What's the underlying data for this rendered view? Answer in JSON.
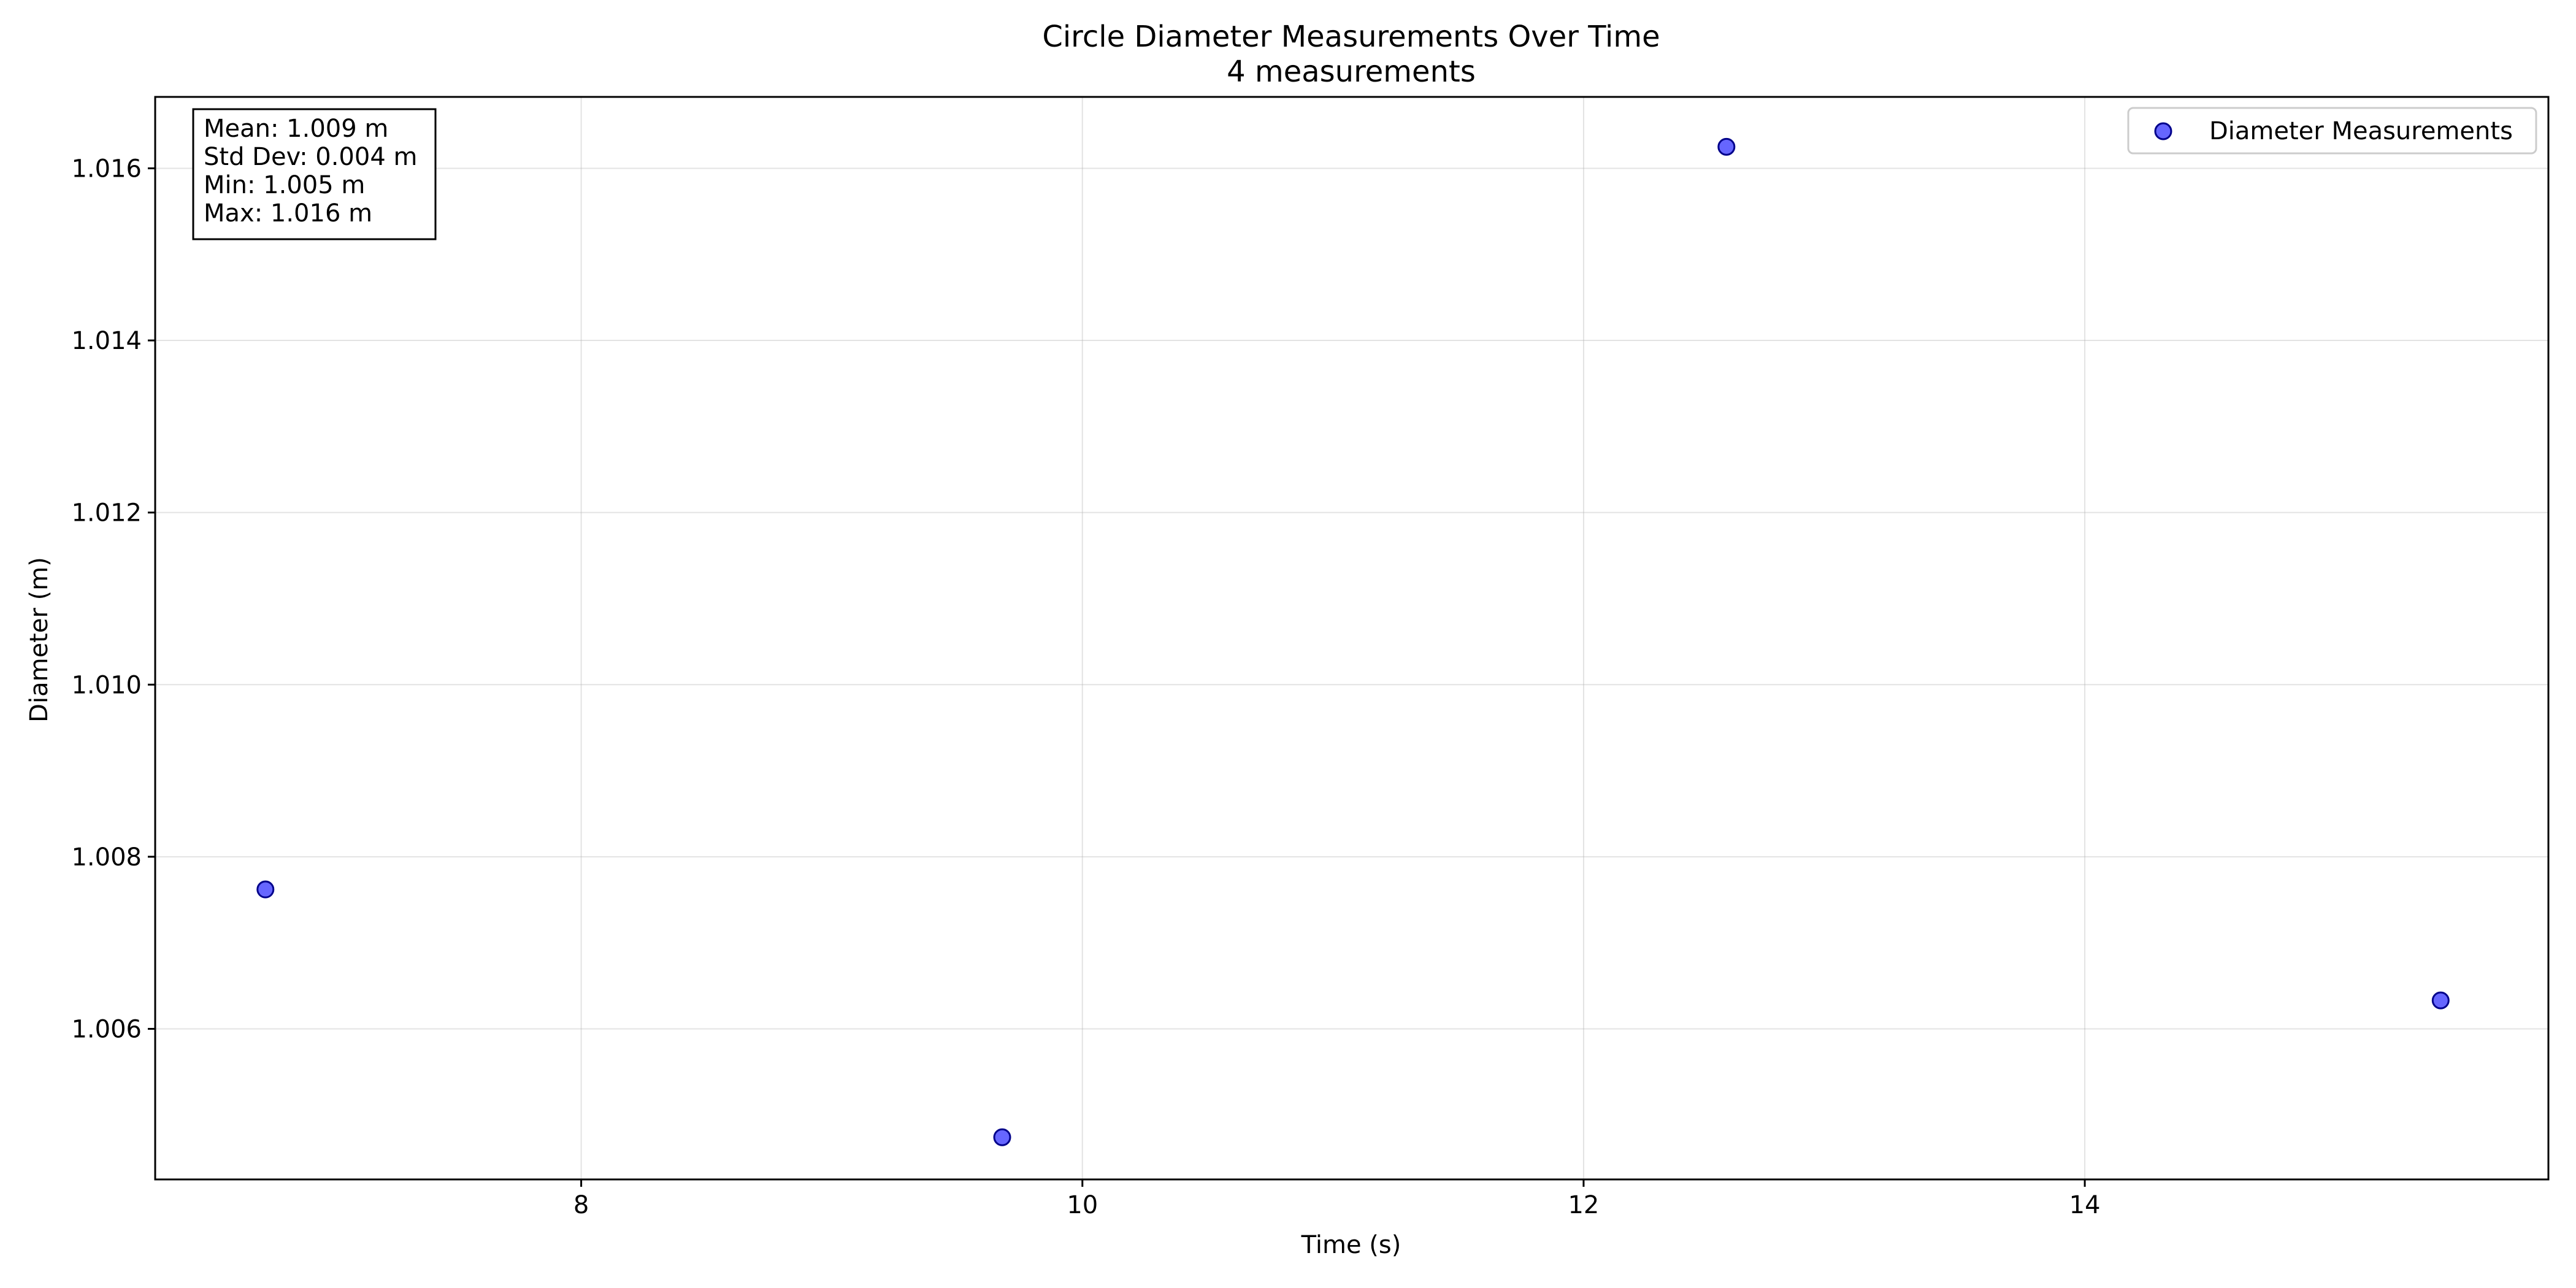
{
  "chart_data": {
    "type": "scatter",
    "title": "Circle Diameter Measurements Over Time",
    "subtitle": "4 measurements",
    "xlabel": "Time (s)",
    "ylabel": "Diameter (m)",
    "xlim": [
      6.3,
      15.85
    ],
    "ylim": [
      1.00425,
      1.01683
    ],
    "xticks": [
      8,
      10,
      12,
      14
    ],
    "xtick_labels": [
      "8",
      "10",
      "12",
      "14"
    ],
    "yticks": [
      1.006,
      1.008,
      1.01,
      1.012,
      1.014,
      1.016
    ],
    "ytick_labels": [
      "1.006",
      "1.008",
      "1.010",
      "1.012",
      "1.014",
      "1.016"
    ],
    "grid": true,
    "legend_position": "top-right",
    "series": [
      {
        "name": "Diameter Measurements",
        "color": "#0000ff",
        "x": [
          6.74,
          9.68,
          12.57,
          15.42
        ],
        "y": [
          1.00762,
          1.00474,
          1.01625,
          1.00633
        ]
      }
    ],
    "stats_box": {
      "lines": [
        "Mean: 1.009 m",
        "Std Dev: 0.004 m",
        "Min: 1.005 m",
        "Max: 1.016 m"
      ]
    }
  }
}
